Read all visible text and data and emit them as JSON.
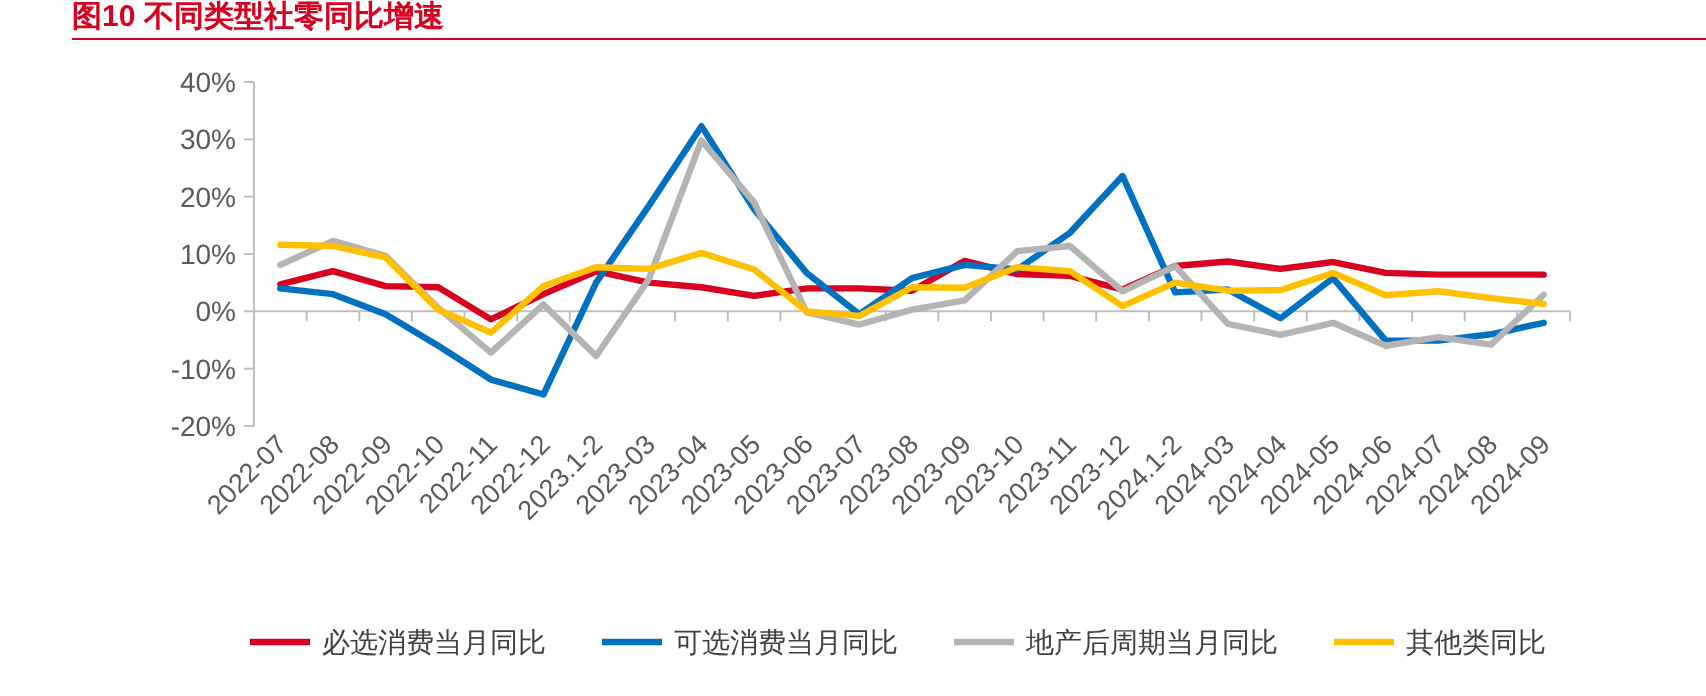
{
  "chart_data": {
    "type": "line",
    "title": "图10  不同类型社零同比增速",
    "categories": [
      "2022-07",
      "2022-08",
      "2022-09",
      "2022-10",
      "2022-11",
      "2022-12",
      "2023.1-2",
      "2023-03",
      "2023-04",
      "2023-05",
      "2023-06",
      "2023-07",
      "2023-08",
      "2023-09",
      "2023-10",
      "2023-11",
      "2023-12",
      "2024.1-2",
      "2024-03",
      "2024-04",
      "2024-05",
      "2024-06",
      "2024-07",
      "2024-08",
      "2024-09"
    ],
    "series": [
      {
        "name": "必选消费当月同比",
        "color": "#d7001f",
        "values": [
          4.7,
          7.0,
          4.4,
          4.2,
          -1.4,
          3.0,
          7.0,
          5.0,
          4.2,
          2.7,
          4.0,
          4.0,
          3.6,
          8.8,
          6.5,
          6.2,
          3.8,
          7.9,
          8.7,
          7.4,
          8.6,
          6.7,
          6.4,
          6.4,
          6.4
        ]
      },
      {
        "name": "可选消费当月同比",
        "color": "#0070c0",
        "values": [
          4.0,
          3.0,
          -0.5,
          -6.0,
          -11.9,
          -14.5,
          5.0,
          18.4,
          32.3,
          17.8,
          6.7,
          -0.5,
          5.8,
          8.1,
          7.3,
          13.7,
          23.6,
          3.3,
          3.8,
          -1.2,
          5.8,
          -5.1,
          -5.1,
          -4.0,
          -2.0
        ]
      },
      {
        "name": "地产后周期当月同比",
        "color": "#b4b4b4",
        "values": [
          8.1,
          12.3,
          9.7,
          0.6,
          -7.2,
          1.2,
          -7.8,
          5.6,
          29.8,
          19.0,
          -0.2,
          -2.3,
          0.3,
          1.9,
          10.5,
          11.4,
          3.5,
          7.9,
          -2.2,
          -4.1,
          -2.0,
          -6.0,
          -4.5,
          -5.8,
          2.9
        ]
      },
      {
        "name": "其他类同比",
        "color": "#ffc000",
        "values": [
          11.6,
          11.4,
          9.4,
          0.3,
          -3.7,
          4.4,
          7.7,
          7.4,
          10.2,
          7.3,
          0.0,
          -0.8,
          4.2,
          4.1,
          7.7,
          7.0,
          0.9,
          5.0,
          3.6,
          3.7,
          6.7,
          2.8,
          3.5,
          2.3,
          1.3
        ]
      }
    ],
    "ylim": [
      -20,
      40
    ],
    "yticks": [
      {
        "value": -20,
        "label": "-20%"
      },
      {
        "value": -10,
        "label": "-10%"
      },
      {
        "value": 0,
        "label": "0%"
      },
      {
        "value": 10,
        "label": "10%"
      },
      {
        "value": 20,
        "label": "20%"
      },
      {
        "value": 30,
        "label": "30%"
      },
      {
        "value": 40,
        "label": "40%"
      }
    ],
    "legend": "bottom",
    "marker": "none",
    "line_style": "solid"
  }
}
